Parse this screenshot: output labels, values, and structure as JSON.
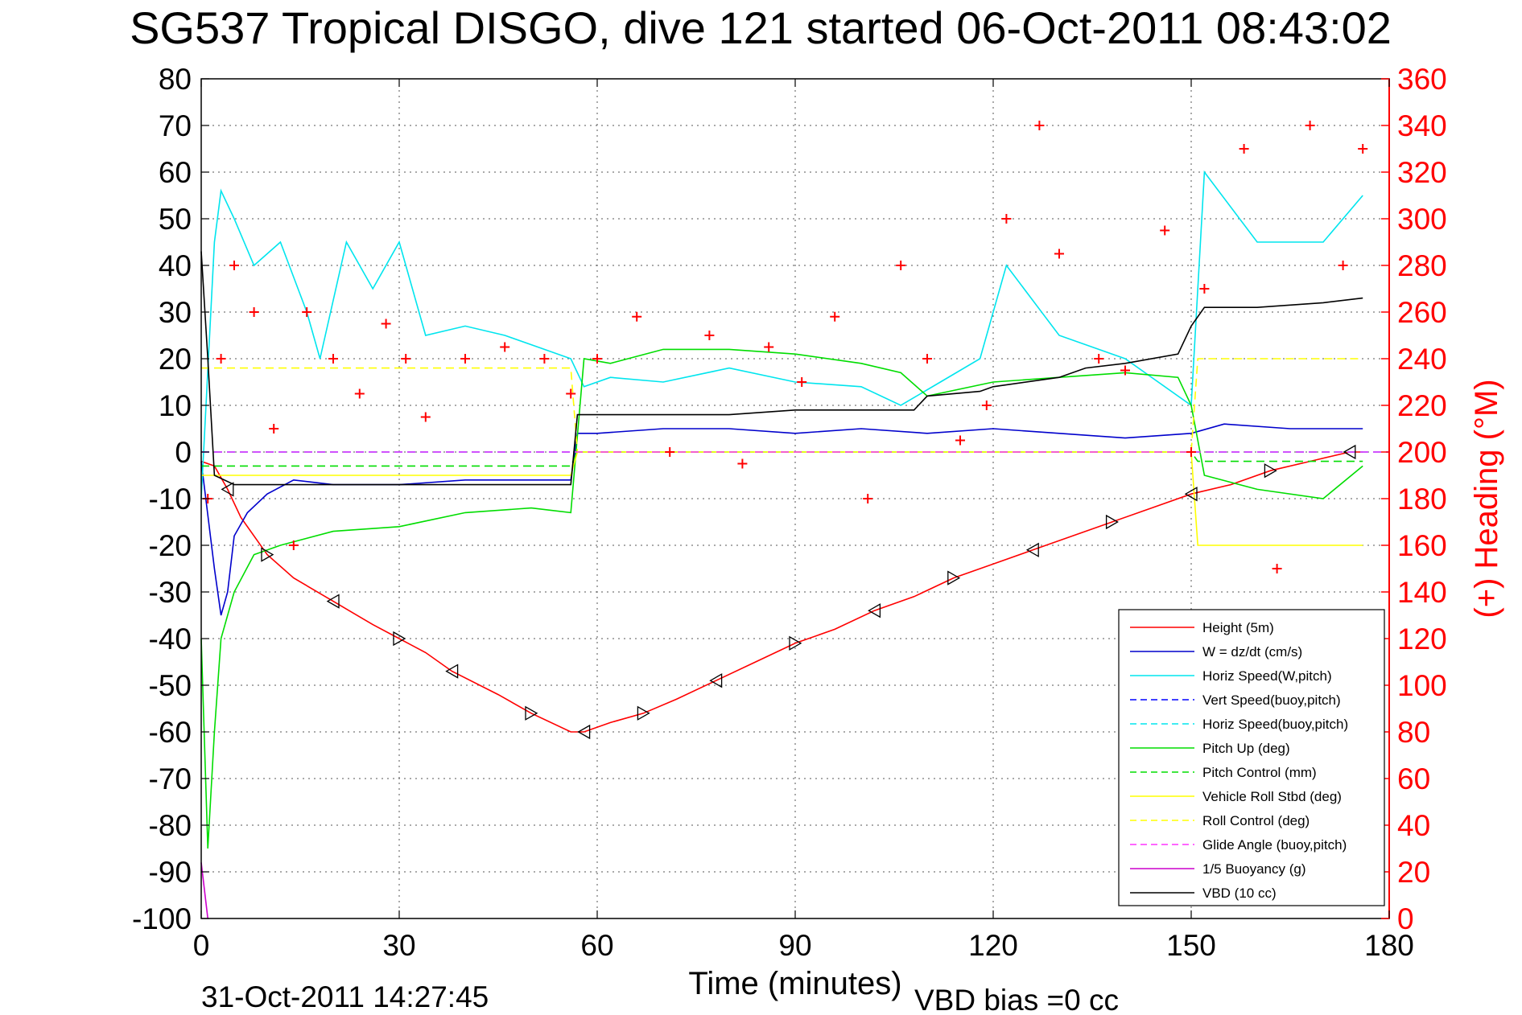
{
  "title": "SG537 Tropical DISGO, dive 121 started 06-Oct-2011 08:43:02",
  "footer": {
    "date": "31-Oct-2011 14:27:45",
    "vbd_bias": "VBD bias =0 cc"
  },
  "colors": {
    "height": "#ff0000",
    "w": "#0000cc",
    "horiz_speed": "#00e5ee",
    "pitch": "#00dd00",
    "roll": "#ffff00",
    "glide": "#ff33ff",
    "buoyancy": "#cc00cc",
    "vbd": "#000000",
    "heading": "#ff0000"
  },
  "chart_data": {
    "type": "line",
    "title": "SG537 Tropical DISGO, dive 121 started 06-Oct-2011 08:43:02",
    "xlabel": "Time (minutes)",
    "ylabel": "",
    "y2label": "(+) Heading (°M)",
    "xlim": [
      0,
      180
    ],
    "ylim": [
      -100,
      80
    ],
    "y2lim": [
      0,
      360
    ],
    "grid": true,
    "legend_position": "bottom-right",
    "xticks": [
      "0",
      "30",
      "60",
      "90",
      "120",
      "150",
      "180"
    ],
    "yticks": [
      "80",
      "70",
      "60",
      "50",
      "40",
      "30",
      "20",
      "10",
      "0",
      "-10",
      "-20",
      "-30",
      "-40",
      "-50",
      "-60",
      "-70",
      "-80",
      "-90",
      "-100"
    ],
    "y2ticks": [
      "360",
      "340",
      "320",
      "300",
      "280",
      "260",
      "240",
      "220",
      "200",
      "180",
      "160",
      "140",
      "120",
      "100",
      "80",
      "60",
      "40",
      "20",
      "0"
    ],
    "series": [
      {
        "name": "Height (5m)",
        "style": "solid",
        "color": "#ff0000",
        "x": [
          0,
          2,
          4,
          6,
          10,
          14,
          20,
          26,
          30,
          34,
          38,
          45,
          50,
          56,
          58,
          62,
          67,
          72,
          78,
          84,
          90,
          96,
          102,
          108,
          114,
          120,
          126,
          132,
          138,
          144,
          150,
          156,
          162,
          168,
          174,
          176
        ],
        "y": [
          -2,
          -3,
          -8,
          -14,
          -22,
          -27,
          -32,
          -37,
          -40,
          -43,
          -47,
          -52,
          -56,
          -60,
          -60,
          -58,
          -56,
          -53,
          -49,
          -45,
          -41,
          -38,
          -34,
          -31,
          -27,
          -24,
          -21,
          -18,
          -15,
          -12,
          -9,
          -7,
          -4,
          -2,
          0,
          0
        ]
      },
      {
        "name": "W = dz/dt (cm/s)",
        "style": "solid",
        "color": "#0000cc",
        "x": [
          0,
          2,
          3,
          4,
          5,
          7,
          10,
          14,
          20,
          30,
          40,
          50,
          56,
          57,
          60,
          70,
          80,
          90,
          100,
          110,
          120,
          130,
          140,
          150,
          155,
          165,
          175,
          176
        ],
        "y": [
          -2,
          -25,
          -35,
          -30,
          -18,
          -13,
          -9,
          -6,
          -7,
          -7,
          -6,
          -6,
          -6,
          4,
          4,
          5,
          5,
          4,
          5,
          4,
          5,
          4,
          3,
          4,
          6,
          5,
          5,
          5
        ]
      },
      {
        "name": "Horiz Speed(W,pitch)",
        "style": "solid",
        "color": "#00e5ee",
        "x": [
          0,
          2,
          3,
          5,
          8,
          12,
          16,
          18,
          22,
          26,
          30,
          34,
          40,
          46,
          52,
          56,
          58,
          62,
          70,
          80,
          90,
          100,
          106,
          112,
          118,
          122,
          130,
          140,
          150,
          152,
          160,
          170,
          176
        ],
        "y": [
          -10,
          45,
          56,
          50,
          40,
          45,
          30,
          20,
          45,
          35,
          45,
          25,
          27,
          25,
          22,
          20,
          14,
          16,
          15,
          18,
          15,
          14,
          10,
          15,
          20,
          40,
          25,
          20,
          10,
          60,
          45,
          45,
          55
        ]
      },
      {
        "name": "Vert Speed(buoy,pitch)",
        "style": "dashed",
        "color": "#0000ff",
        "x": [
          0,
          180
        ],
        "y": [
          0,
          0
        ]
      },
      {
        "name": "Horiz Speed(buoy,pitch)",
        "style": "dashed",
        "color": "#00e5ee",
        "x": [
          0,
          180
        ],
        "y": [
          0,
          0
        ]
      },
      {
        "name": "Pitch Up (deg)",
        "style": "solid",
        "color": "#00dd00",
        "x": [
          0,
          1,
          2,
          3,
          5,
          8,
          12,
          20,
          30,
          40,
          50,
          56,
          58,
          62,
          70,
          80,
          90,
          100,
          106,
          110,
          120,
          130,
          140,
          148,
          150,
          152,
          160,
          170,
          176
        ],
        "y": [
          -40,
          -85,
          -60,
          -40,
          -30,
          -22,
          -20,
          -17,
          -16,
          -13,
          -12,
          -13,
          20,
          19,
          22,
          22,
          21,
          19,
          17,
          12,
          15,
          16,
          17,
          16,
          10,
          -5,
          -8,
          -10,
          -3
        ]
      },
      {
        "name": "Pitch Control (mm)",
        "style": "dashed",
        "color": "#00dd00",
        "x": [
          0,
          5,
          56,
          57,
          150,
          151,
          176
        ],
        "y": [
          -3,
          -3,
          -3,
          0,
          0,
          -2,
          -2
        ]
      },
      {
        "name": "Vehicle Roll Stbd (deg)",
        "style": "solid",
        "color": "#ffff00",
        "x": [
          0,
          56,
          57,
          150,
          151,
          176
        ],
        "y": [
          -5,
          -5,
          0,
          0,
          -20,
          -20
        ]
      },
      {
        "name": "Roll Control (deg)",
        "style": "dashed",
        "color": "#ffff00",
        "x": [
          0,
          56,
          57,
          150,
          151,
          176
        ],
        "y": [
          18,
          18,
          0,
          0,
          20,
          20
        ]
      },
      {
        "name": "Glide Angle (buoy,pitch)",
        "style": "dashed",
        "color": "#ff33ff",
        "x": [
          0,
          180
        ],
        "y": [
          0,
          0
        ]
      },
      {
        "name": "1/5 Buoyancy (g)",
        "style": "solid",
        "color": "#cc00cc",
        "x": [
          0,
          1
        ],
        "y": [
          -88,
          -100
        ]
      },
      {
        "name": "VBD (10 cc)",
        "style": "solid",
        "color": "#000000",
        "x": [
          0,
          1,
          2,
          5,
          56,
          57,
          60,
          80,
          90,
          108,
          110,
          118,
          120,
          130,
          134,
          140,
          148,
          150,
          152,
          160,
          170,
          176
        ],
        "y": [
          43,
          20,
          -5,
          -7,
          -7,
          8,
          8,
          8,
          9,
          9,
          12,
          13,
          14,
          16,
          18,
          19,
          21,
          27,
          31,
          31,
          32,
          33
        ]
      },
      {
        "name": "(+) Heading",
        "style": "markers",
        "marker": "+",
        "axis": "right",
        "color": "#ff0000",
        "x": [
          1,
          3,
          5,
          8,
          11,
          14,
          16,
          20,
          24,
          28,
          31,
          34,
          40,
          46,
          52,
          56,
          60,
          66,
          71,
          77,
          82,
          86,
          91,
          96,
          101,
          106,
          110,
          115,
          119,
          122,
          127,
          130,
          136,
          140,
          146,
          150,
          152,
          158,
          163,
          168,
          173,
          176
        ],
        "y": [
          180,
          240,
          280,
          260,
          210,
          160,
          260,
          240,
          225,
          255,
          240,
          215,
          240,
          245,
          240,
          225,
          240,
          258,
          200,
          250,
          195,
          245,
          230,
          258,
          180,
          280,
          240,
          205,
          220,
          300,
          340,
          285,
          240,
          235,
          295,
          200,
          270,
          330,
          150,
          340,
          280,
          330
        ]
      }
    ]
  },
  "axes": {
    "xlabel": "Time (minutes)",
    "y2label": "(+) Heading (°M)",
    "xticks": [
      "0",
      "30",
      "60",
      "90",
      "120",
      "150",
      "180"
    ],
    "yticks": [
      "80",
      "70",
      "60",
      "50",
      "40",
      "30",
      "20",
      "10",
      "0",
      "-10",
      "-20",
      "-30",
      "-40",
      "-50",
      "-60",
      "-70",
      "-80",
      "-90",
      "-100"
    ],
    "y2ticks": [
      "360",
      "340",
      "320",
      "300",
      "280",
      "260",
      "240",
      "220",
      "200",
      "180",
      "160",
      "140",
      "120",
      "100",
      "80",
      "60",
      "40",
      "20",
      "0"
    ]
  },
  "legend": [
    {
      "label": "Height (5m)",
      "color": "#ff0000",
      "style": "solid"
    },
    {
      "label": "W = dz/dt (cm/s)",
      "color": "#0000cc",
      "style": "solid"
    },
    {
      "label": "Horiz Speed(W,pitch)",
      "color": "#00e5ee",
      "style": "solid"
    },
    {
      "label": "Vert Speed(buoy,pitch)",
      "color": "#0000ff",
      "style": "dashed"
    },
    {
      "label": "Horiz Speed(buoy,pitch)",
      "color": "#00e5ee",
      "style": "dashed"
    },
    {
      "label": "Pitch Up (deg)",
      "color": "#00dd00",
      "style": "solid"
    },
    {
      "label": "Pitch Control (mm)",
      "color": "#00dd00",
      "style": "dashed"
    },
    {
      "label": "Vehicle Roll Stbd (deg)",
      "color": "#ffff00",
      "style": "solid"
    },
    {
      "label": "Roll Control (deg)",
      "color": "#ffff00",
      "style": "dashed"
    },
    {
      "label": "Glide Angle (buoy,pitch)",
      "color": "#ff33ff",
      "style": "dashed"
    },
    {
      "label": "1/5 Buoyancy (g)",
      "color": "#cc00cc",
      "style": "solid"
    },
    {
      "label": "VBD (10 cc)",
      "color": "#000000",
      "style": "solid"
    }
  ]
}
